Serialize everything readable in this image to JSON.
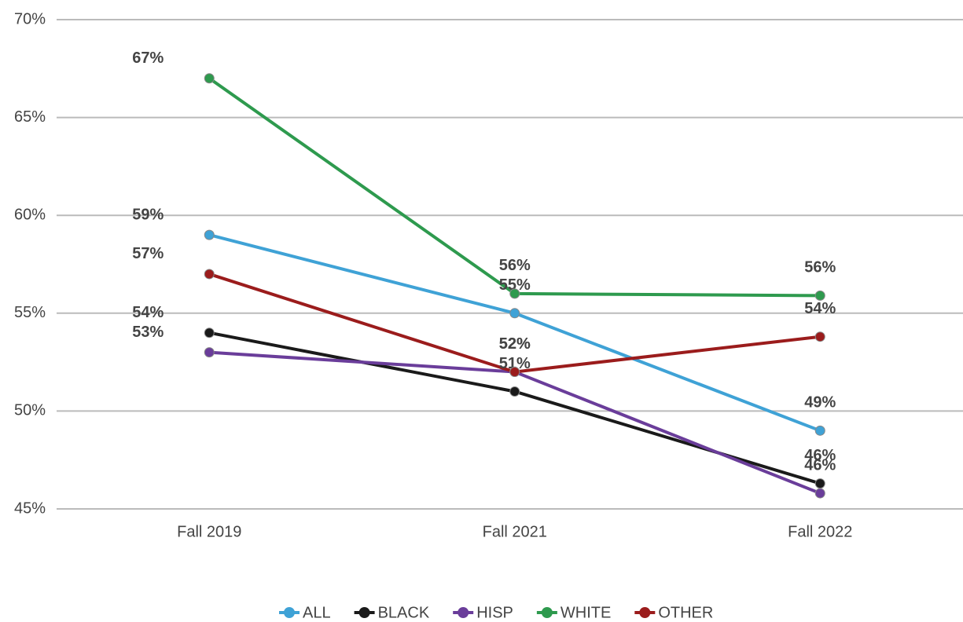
{
  "chart_data": {
    "type": "line",
    "categories": [
      "Fall 2019",
      "Fall 2021",
      "Fall 2022"
    ],
    "series": [
      {
        "name": "ALL",
        "color": "#3fa2d6",
        "values": [
          59,
          55,
          49
        ],
        "value_labels": [
          "59%",
          "55%",
          "49%"
        ]
      },
      {
        "name": "BLACK",
        "color": "#1a1a1a",
        "values": [
          54,
          51,
          46.3
        ],
        "value_labels": [
          "54%",
          "51%",
          "46%"
        ]
      },
      {
        "name": "HISP",
        "color": "#6a3d9a",
        "values": [
          53,
          52,
          45.8
        ],
        "value_labels": [
          "53%",
          "52%",
          "46%"
        ]
      },
      {
        "name": "WHITE",
        "color": "#2e9a4e",
        "values": [
          67,
          56,
          55.9
        ],
        "value_labels": [
          "67%",
          "56%",
          "56%"
        ]
      },
      {
        "name": "OTHER",
        "color": "#9b1c1c",
        "values": [
          57,
          52,
          53.8
        ],
        "value_labels": [
          "57%",
          "52%",
          "54%"
        ]
      }
    ],
    "ylim": [
      45,
      70
    ],
    "yticks": [
      {
        "value": 45,
        "label": "45%"
      },
      {
        "value": 50,
        "label": "50%"
      },
      {
        "value": 55,
        "label": "55%"
      },
      {
        "value": 60,
        "label": "60%"
      },
      {
        "value": 65,
        "label": "65%"
      },
      {
        "value": 70,
        "label": "70%"
      }
    ],
    "grid": true,
    "legend": "bottom"
  }
}
